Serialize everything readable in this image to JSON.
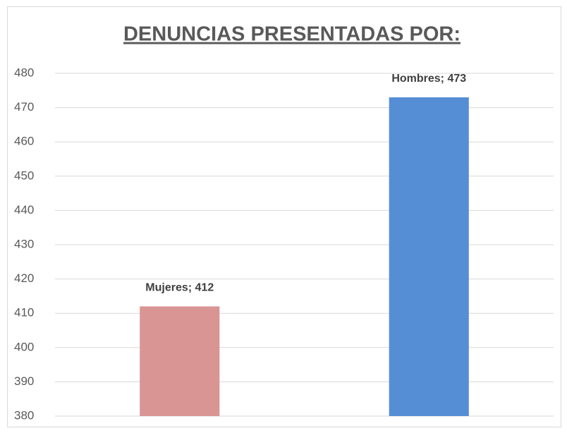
{
  "chart_data": {
    "type": "bar",
    "title": "DENUNCIAS PRESENTADAS POR:",
    "categories": [
      null,
      null
    ],
    "series": [
      {
        "values": [
          412,
          473
        ],
        "value_labels": [
          "Mujeres; 412",
          "Hombres; 473"
        ],
        "colors": [
          "#d99594",
          "#558ed5"
        ]
      }
    ],
    "ylim": [
      380,
      480
    ],
    "yticks": [
      380,
      390,
      400,
      410,
      420,
      430,
      440,
      450,
      460,
      470,
      480
    ],
    "grid": true
  }
}
